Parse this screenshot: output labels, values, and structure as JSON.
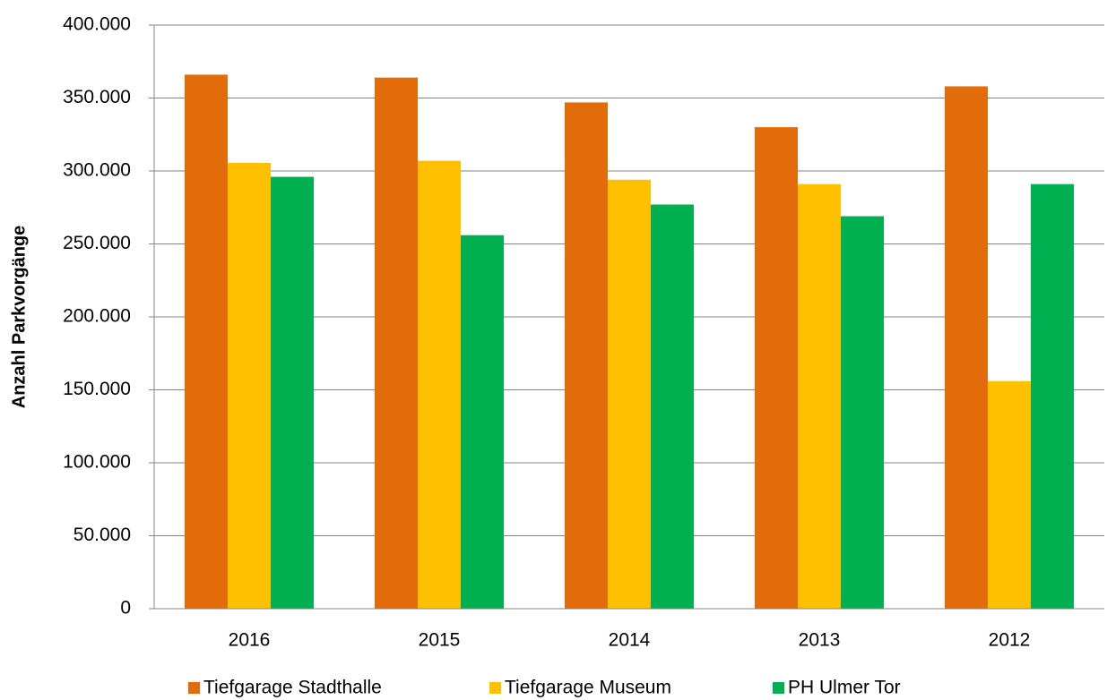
{
  "chart_data": {
    "type": "bar",
    "y_label": "Anzahl Parkvorgänge",
    "categories": [
      "2016",
      "2015",
      "2014",
      "2013",
      "2012"
    ],
    "series": [
      {
        "name": "Tiefgarage Stadthalle",
        "color": "#e36c0a",
        "values": [
          366000,
          364000,
          347000,
          330000,
          358000
        ]
      },
      {
        "name": "Tiefgarage Museum",
        "color": "#ffc000",
        "values": [
          305500,
          307000,
          294000,
          291000,
          156000
        ]
      },
      {
        "name": "PH Ulmer Tor",
        "color": "#00b050",
        "values": [
          296000,
          256000,
          277000,
          269000,
          291000
        ]
      }
    ],
    "ylim": [
      0,
      400000
    ],
    "yticks": [
      0,
      {
        "value": 50000,
        "label": "50.000"
      },
      {
        "value": 100000,
        "label": "100.000"
      },
      {
        "value": 150000,
        "label": "150.000"
      },
      {
        "value": 200000,
        "label": "200.000"
      },
      {
        "value": 250000,
        "label": "250.000"
      },
      {
        "value": 300000,
        "label": "300.000"
      },
      {
        "value": 350000,
        "label": "350.000"
      },
      {
        "value": 400000,
        "label": "400.000"
      }
    ],
    "grid": true,
    "legend": "bottom"
  }
}
